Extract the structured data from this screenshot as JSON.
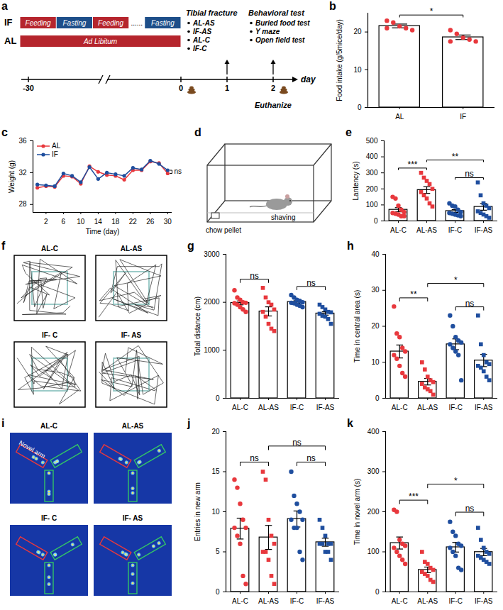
{
  "chart_data": [
    {
      "panel_label": "b",
      "type": "bar",
      "y_label": "Food intake (g/5mice/day)",
      "ylim": [
        0,
        25
      ],
      "yticks": [
        0,
        10,
        20
      ],
      "series": [
        {
          "name": "AL",
          "color": "#e8383d",
          "marker": "circle",
          "value": 21.6,
          "error": 0.5,
          "points": [
            23,
            22.5,
            21.5,
            21,
            20.5,
            21
          ]
        },
        {
          "name": "IF",
          "color": "#e8383d",
          "marker": "circle",
          "value": 18.6,
          "error": 0.6,
          "points": [
            20.5,
            19.5,
            18.5,
            18,
            17.5,
            17.5
          ]
        }
      ],
      "comparisons": [
        {
          "from": "AL",
          "to": "IF",
          "label": "*"
        }
      ]
    },
    {
      "panel_label": "c",
      "type": "line",
      "x_label": "Time (day)",
      "y_label": "Weight (g)",
      "xlim": [
        -1,
        31
      ],
      "xticks": [
        2,
        6,
        10,
        14,
        18,
        22,
        26,
        30
      ],
      "ylim": [
        27,
        36
      ],
      "yticks": [
        28,
        32,
        36
      ],
      "legend": "top-left",
      "x": [
        0,
        2,
        4,
        6,
        8,
        10,
        12,
        14,
        16,
        18,
        20,
        22,
        24,
        26,
        28,
        30
      ],
      "series": [
        {
          "name": "AL",
          "color": "#e8383d",
          "marker": "circle",
          "values": [
            30.1,
            30.3,
            30.2,
            31.6,
            31.5,
            30.6,
            32.8,
            32.1,
            31.7,
            31.6,
            31.1,
            32.3,
            32.3,
            33.4,
            33.2,
            31.9
          ]
        },
        {
          "name": "IF",
          "color": "#1f4e9e",
          "marker": "circle",
          "values": [
            30.5,
            30.4,
            30.3,
            31.9,
            31.6,
            30.8,
            32.7,
            31.2,
            32.0,
            31.8,
            31.6,
            32.6,
            32.4,
            33.5,
            33.1,
            32.3
          ]
        }
      ],
      "annotations": [
        {
          "text": "ns"
        }
      ]
    },
    {
      "panel_label": "e",
      "type": "bar",
      "y_label": "Lantency (s)",
      "ylim": [
        0,
        500
      ],
      "yticks": [
        0,
        100,
        200,
        300,
        400,
        500
      ],
      "series": [
        {
          "name": "AL-C",
          "color": "#e8383d",
          "marker": "circle",
          "value": 70,
          "error": 13,
          "points": [
            150,
            140,
            95,
            70,
            55,
            50,
            45,
            40,
            30,
            30
          ]
        },
        {
          "name": "AL-AS",
          "color": "#e8383d",
          "marker": "square",
          "value": 193,
          "error": 21,
          "points": [
            300,
            270,
            250,
            230,
            200,
            180,
            160,
            140,
            110,
            90
          ]
        },
        {
          "name": "IF-C",
          "color": "#1f4e9e",
          "marker": "circle",
          "value": 62,
          "error": 9,
          "points": [
            110,
            95,
            90,
            70,
            55,
            50,
            45,
            40,
            35,
            30
          ]
        },
        {
          "name": "IF-AS",
          "color": "#1f4e9e",
          "marker": "square",
          "value": 88,
          "error": 21,
          "points": [
            240,
            160,
            110,
            95,
            80,
            60,
            50,
            40,
            30,
            20
          ]
        }
      ],
      "comparisons": [
        {
          "from": "AL-C",
          "to": "AL-AS",
          "label": "***"
        },
        {
          "from": "IF-C",
          "to": "IF-AS",
          "label": "ns"
        },
        {
          "from": "AL-AS",
          "to": "IF-AS",
          "label": "**"
        }
      ]
    },
    {
      "panel_label": "g",
      "type": "bar",
      "y_label": "Total distance (cm)",
      "ylim": [
        0,
        3000
      ],
      "yticks": [
        0,
        1000,
        2000,
        3000
      ],
      "series": [
        {
          "name": "AL-C",
          "color": "#e8383d",
          "marker": "circle",
          "value": 1987,
          "error": 40,
          "points": [
            2250,
            2100,
            2050,
            2000,
            1990,
            1980,
            1950,
            1900,
            1850,
            1800
          ]
        },
        {
          "name": "AL-AS",
          "color": "#e8383d",
          "marker": "square",
          "value": 1810,
          "error": 95,
          "points": [
            2300,
            2100,
            2000,
            1950,
            1850,
            1800,
            1700,
            1550,
            1450,
            1400
          ]
        },
        {
          "name": "IF-C",
          "color": "#1f4e9e",
          "marker": "circle",
          "value": 2008,
          "error": 25,
          "points": [
            2150,
            2100,
            2050,
            2030,
            2000,
            1990,
            1980,
            1950,
            1930,
            1900
          ]
        },
        {
          "name": "IF-AS",
          "color": "#1f4e9e",
          "marker": "square",
          "value": 1767,
          "error": 35,
          "points": [
            1950,
            1900,
            1850,
            1800,
            1790,
            1760,
            1720,
            1700,
            1650,
            1550
          ]
        }
      ],
      "comparisons": [
        {
          "from": "AL-C",
          "to": "AL-AS",
          "label": "ns"
        },
        {
          "from": "IF-C",
          "to": "IF-AS",
          "label": "ns"
        }
      ]
    },
    {
      "panel_label": "h",
      "type": "bar",
      "y_label": "Time in central area (s)",
      "ylim": [
        0,
        40
      ],
      "yticks": [
        0,
        10,
        20,
        30,
        40
      ],
      "series": [
        {
          "name": "AL-C",
          "color": "#e8383d",
          "marker": "circle",
          "value": 13,
          "error": 1.8,
          "points": [
            25.5,
            18,
            17,
            14,
            13,
            12,
            11,
            9,
            7,
            6
          ]
        },
        {
          "name": "AL-AS",
          "color": "#e8383d",
          "marker": "square",
          "value": 4.6,
          "error": 0.9,
          "points": [
            10,
            8,
            6,
            5,
            4.5,
            4,
            3,
            2.5,
            2,
            1
          ]
        },
        {
          "name": "IF-C",
          "color": "#1f4e9e",
          "marker": "circle",
          "value": 15,
          "error": 1.5,
          "points": [
            23,
            20,
            17,
            16,
            15.5,
            15,
            14,
            13,
            12,
            5
          ]
        },
        {
          "name": "IF-AS",
          "color": "#1f4e9e",
          "marker": "square",
          "value": 10.5,
          "error": 1.7,
          "points": [
            23,
            15,
            12,
            10,
            9.5,
            9,
            8.5,
            7.5,
            6,
            5
          ]
        }
      ],
      "comparisons": [
        {
          "from": "AL-C",
          "to": "AL-AS",
          "label": "**"
        },
        {
          "from": "IF-C",
          "to": "IF-AS",
          "label": "ns"
        },
        {
          "from": "AL-AS",
          "to": "IF-AS",
          "label": "*"
        }
      ]
    },
    {
      "panel_label": "j",
      "type": "bar",
      "y_label": "Entries in new arm",
      "ylim": [
        0,
        20
      ],
      "yticks": [
        0,
        5,
        10,
        15,
        20
      ],
      "series": [
        {
          "name": "AL-C",
          "color": "#e8383d",
          "marker": "circle",
          "value": 7.9,
          "error": 1.3,
          "points": [
            14,
            13,
            11,
            9,
            8,
            8,
            7,
            6,
            2,
            1
          ]
        },
        {
          "name": "AL-AS",
          "color": "#e8383d",
          "marker": "square",
          "value": 6.8,
          "error": 1.5,
          "points": [
            15,
            14,
            9,
            7,
            6,
            5,
            5,
            4,
            2,
            1
          ]
        },
        {
          "name": "IF-C",
          "color": "#1f4e9e",
          "marker": "circle",
          "value": 9.1,
          "error": 1.0,
          "points": [
            15,
            12,
            11,
            10,
            9,
            9,
            8,
            8,
            5,
            4
          ]
        },
        {
          "name": "IF-AS",
          "color": "#1f4e9e",
          "marker": "square",
          "value": 6.2,
          "error": 0.5,
          "points": [
            9,
            8,
            7,
            6,
            6,
            6,
            6,
            5,
            5,
            4
          ]
        }
      ],
      "comparisons": [
        {
          "from": "AL-C",
          "to": "AL-AS",
          "label": "ns"
        },
        {
          "from": "IF-C",
          "to": "IF-AS",
          "label": "ns"
        },
        {
          "from": "AL-AS",
          "to": "IF-AS",
          "label": "ns"
        }
      ]
    },
    {
      "panel_label": "k",
      "type": "bar",
      "y_label": "Time in novel arm (s)",
      "ylim": [
        0,
        400
      ],
      "yticks": [
        0,
        100,
        200,
        300,
        400
      ],
      "series": [
        {
          "name": "AL-C",
          "color": "#e8383d",
          "marker": "circle",
          "value": 122,
          "error": 15,
          "points": [
            205,
            200,
            130,
            120,
            115,
            110,
            100,
            90,
            80,
            70
          ]
        },
        {
          "name": "AL-AS",
          "color": "#e8383d",
          "marker": "square",
          "value": 55,
          "error": 7,
          "points": [
            100,
            75,
            70,
            60,
            55,
            50,
            45,
            40,
            30,
            25
          ]
        },
        {
          "name": "IF-C",
          "color": "#1f4e9e",
          "marker": "circle",
          "value": 111.5,
          "error": 12,
          "points": [
            175,
            150,
            140,
            120,
            115,
            110,
            100,
            90,
            60,
            55
          ]
        },
        {
          "name": "IF-AS",
          "color": "#1f4e9e",
          "marker": "square",
          "value": 99.5,
          "error": 9,
          "points": [
            160,
            130,
            110,
            100,
            95,
            90,
            85,
            80,
            75,
            70
          ]
        }
      ],
      "comparisons": [
        {
          "from": "AL-C",
          "to": "AL-AS",
          "label": "***"
        },
        {
          "from": "IF-C",
          "to": "IF-AS",
          "label": "ns"
        },
        {
          "from": "AL-AS",
          "to": "IF-AS",
          "label": "*"
        }
      ]
    }
  ],
  "diagrams": {
    "a": {
      "panel_label": "a",
      "rows": [
        {
          "label": "IF",
          "blocks": [
            "Feeding",
            "Fasting",
            "Feeding",
            "......",
            "Fasting"
          ],
          "colors": [
            "#b5252d",
            "#1d4e89",
            "#b5252d",
            null,
            "#1d4e89"
          ]
        },
        {
          "label": "AL",
          "blocks": [
            "Ad Libitum"
          ],
          "colors": [
            "#b5252d"
          ]
        }
      ],
      "axis_ticks": [
        "-30",
        "0",
        "1",
        "2"
      ],
      "axis_unit": "day",
      "events": [
        {
          "title": "Tibial fracture",
          "items": [
            "AL-AS",
            "IF-AS",
            "AL-C",
            "IF-C"
          ]
        },
        {
          "title": "Behavioral test",
          "items": [
            "Buried food test",
            "Y maze",
            "Open field test"
          ]
        }
      ],
      "end_label": "Euthanize"
    },
    "d": {
      "panel_label": "d",
      "labels": [
        "chow pellet",
        "shaving"
      ]
    },
    "f": {
      "panel_label": "f",
      "titles": [
        "AL-C",
        "AL-AS",
        "IF- C",
        "IF- AS"
      ]
    },
    "i": {
      "panel_label": "i",
      "titles": [
        "AL-C",
        "AL-AS",
        "IF- C",
        "IF- AS"
      ],
      "arm_label": "Novel arm"
    }
  }
}
